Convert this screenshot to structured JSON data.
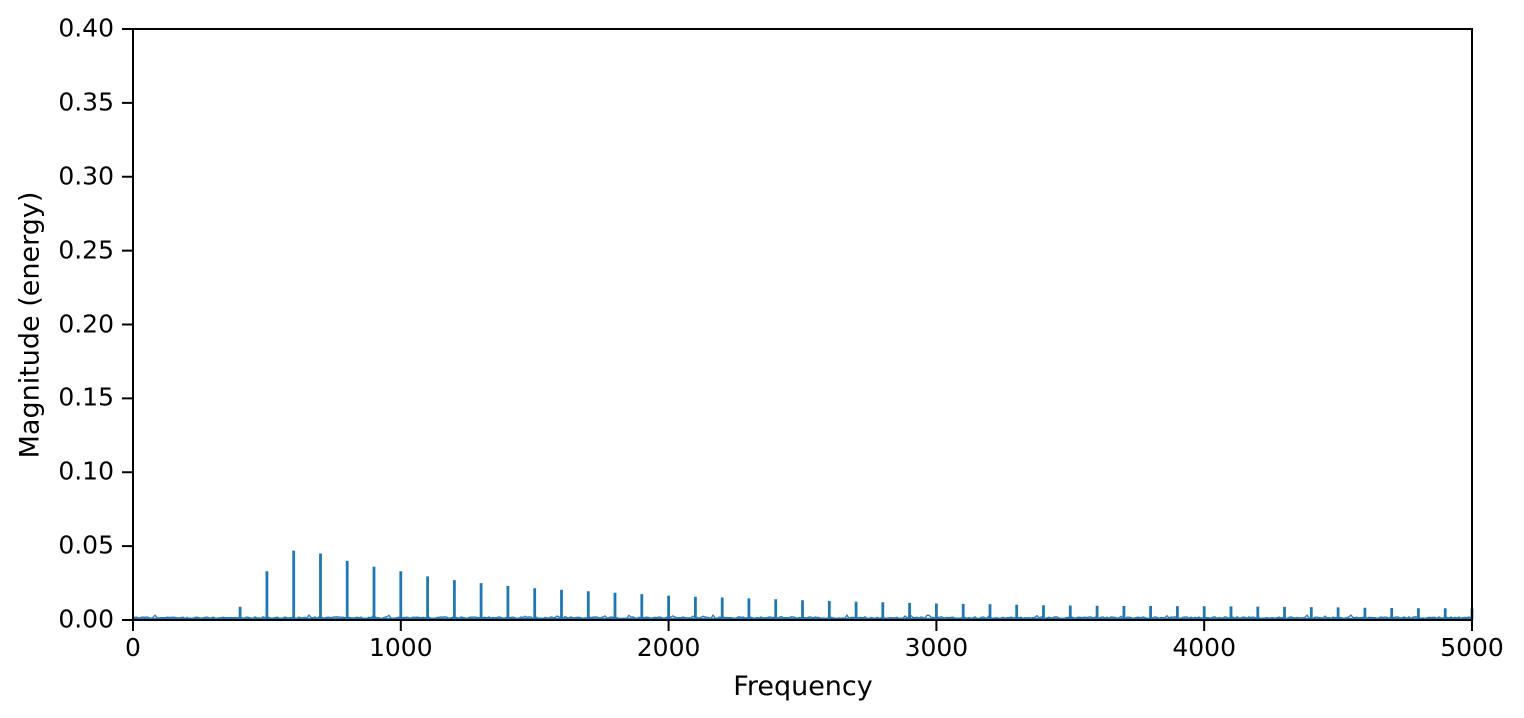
{
  "figure": {
    "background": "#ffffff",
    "text_color": "#000000",
    "spine_color": "#000000"
  },
  "chart_data": {
    "type": "line",
    "title": "",
    "xlabel": "Frequency",
    "ylabel": "Magnitude (energy)",
    "xlim": [
      0,
      5000
    ],
    "ylim": [
      0.0,
      0.4
    ],
    "xticks": [
      0,
      1000,
      2000,
      3000,
      4000,
      5000
    ],
    "xtick_labels": [
      "0",
      "1000",
      "2000",
      "3000",
      "4000",
      "5000"
    ],
    "yticks": [
      0.0,
      0.05,
      0.1,
      0.15,
      0.2,
      0.25,
      0.3,
      0.35,
      0.4
    ],
    "ytick_labels": [
      "0.00",
      "0.05",
      "0.10",
      "0.15",
      "0.20",
      "0.25",
      "0.30",
      "0.35",
      "0.40"
    ],
    "grid": false,
    "legend": null,
    "series_color": "#1f77b4",
    "description": "Frequency spectrum with narrow harmonic peaks every 100 Hz above a near-zero noise floor; envelope peaks near 600 Hz and decays toward 5000 Hz",
    "noise_floor": 0.0005,
    "peaks": {
      "frequencies": [
        300,
        400,
        500,
        600,
        700,
        800,
        900,
        1000,
        1100,
        1200,
        1300,
        1400,
        1500,
        1600,
        1700,
        1800,
        1900,
        2000,
        2100,
        2200,
        2300,
        2400,
        2500,
        2600,
        2700,
        2800,
        2900,
        3000,
        3100,
        3200,
        3300,
        3400,
        3500,
        3600,
        3700,
        3800,
        3900,
        4000,
        4100,
        4200,
        4300,
        4400,
        4500,
        4600,
        4700,
        4800,
        4900,
        5000
      ],
      "magnitudes": [
        0.002,
        0.009,
        0.033,
        0.047,
        0.045,
        0.04,
        0.036,
        0.033,
        0.0295,
        0.027,
        0.025,
        0.023,
        0.0215,
        0.0205,
        0.0195,
        0.0185,
        0.0175,
        0.0165,
        0.0158,
        0.0152,
        0.0146,
        0.014,
        0.0134,
        0.0129,
        0.0124,
        0.012,
        0.0116,
        0.0112,
        0.0109,
        0.0106,
        0.0103,
        0.01,
        0.0098,
        0.0096,
        0.0095,
        0.0095,
        0.0094,
        0.0093,
        0.0092,
        0.0091,
        0.0089,
        0.0087,
        0.0085,
        0.0083,
        0.0081,
        0.008,
        0.0079,
        0.0078
      ]
    }
  }
}
